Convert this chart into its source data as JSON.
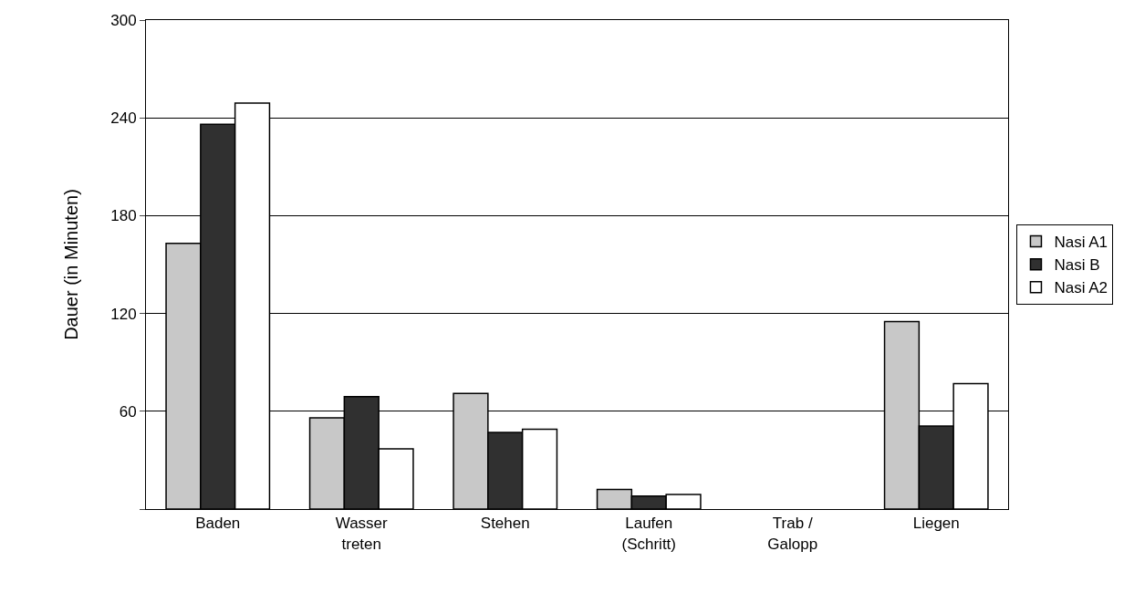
{
  "chart_data": {
    "type": "bar",
    "ylabel": "Dauer (in Minuten)",
    "categories": [
      "Baden",
      "Wasser\ntreten",
      "Stehen",
      "Laufen\n(Schritt)",
      "Trab /\nGalopp",
      "Liegen"
    ],
    "series": [
      {
        "name": "Nasi A1",
        "color": "#c8c8c8",
        "values": [
          163,
          56,
          71,
          12,
          0,
          115
        ]
      },
      {
        "name": "Nasi B",
        "color": "#303030",
        "values": [
          236,
          69,
          47,
          8,
          0,
          51
        ]
      },
      {
        "name": "Nasi A2",
        "color": "#ffffff",
        "values": [
          249,
          37,
          49,
          9,
          0,
          77
        ]
      }
    ],
    "ylim": [
      0,
      300
    ],
    "yticks": [
      {
        "value": 0,
        "label": null
      },
      60,
      120,
      180,
      240,
      300
    ],
    "grid": "y",
    "legend": "right"
  }
}
